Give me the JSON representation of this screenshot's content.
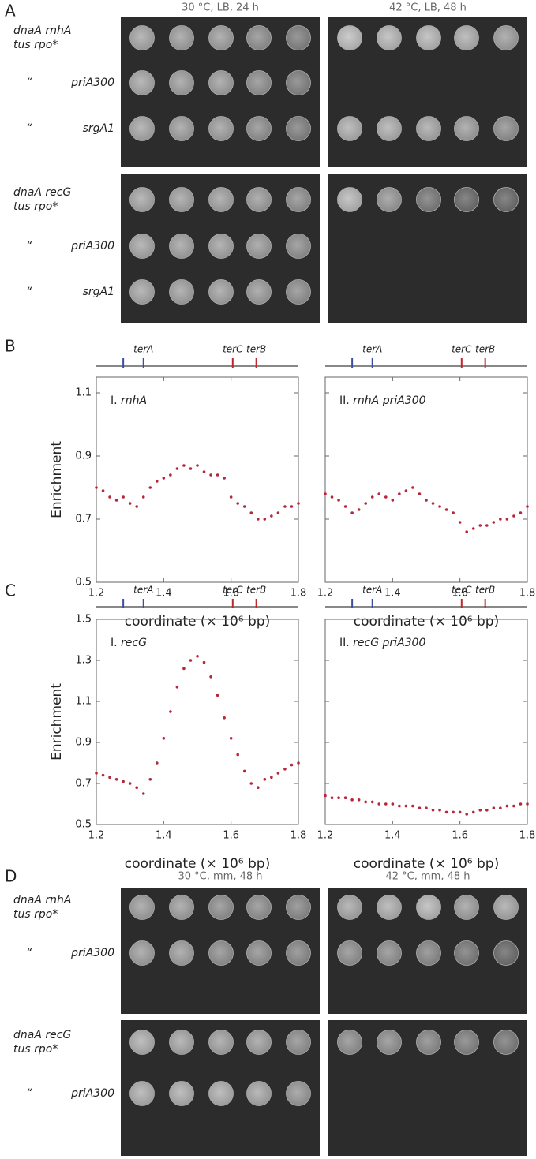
{
  "plates": [
    {
      "letter": "A",
      "conditions": [
        "30 °C, LB, 24 h",
        "42 °C, LB, 48 h"
      ],
      "groups": [
        {
          "rows": [
            {
              "strain": [
                "dnaA rnhA",
                "tus rpo*"
              ]
            },
            {
              "ditto": "“",
              "allele": "priA300"
            },
            {
              "ditto": "“",
              "allele": "srgA1"
            }
          ]
        },
        {
          "rows": [
            {
              "strain": [
                "dnaA recG",
                "tus rpo*"
              ]
            },
            {
              "ditto": "“",
              "allele": "priA300"
            },
            {
              "ditto": "“",
              "allele": "srgA1"
            }
          ]
        }
      ]
    },
    {
      "letter": "D",
      "conditions": [
        "30 °C, mm, 48 h",
        "42 °C, mm, 48 h"
      ],
      "groups": [
        {
          "rows": [
            {
              "strain": [
                "dnaA rnhA",
                "tus rpo*"
              ]
            },
            {
              "ditto": "“",
              "allele": "priA300"
            }
          ]
        },
        {
          "rows": [
            {
              "strain": [
                "dnaA recG",
                "tus rpo*"
              ]
            },
            {
              "ditto": "“",
              "allele": "priA300"
            }
          ]
        }
      ]
    }
  ],
  "chart_data": [
    {
      "type": "scatter",
      "panel_letter": "B",
      "numeral": "I.",
      "title": "rnhA",
      "ylabel": "Enrichment",
      "xlabel": "coordinate (× 10⁶ bp)",
      "color": "#b5273a",
      "xlim": [
        1.2,
        1.8
      ],
      "xticks": [
        1.2,
        1.4,
        1.6,
        1.8
      ],
      "ylim": [
        0.5,
        1.15
      ],
      "yticks": [
        0.5,
        0.7,
        0.9,
        1.1
      ],
      "sites": {
        "x": [
          1.28,
          1.34,
          1.605,
          1.675
        ],
        "labels": [
          null,
          "terA",
          "terC",
          "terB"
        ],
        "colors": [
          "#3a4fa0",
          "#3a4fa0",
          "#c0282d",
          "#c0282d"
        ]
      },
      "x": [
        1.2,
        1.22,
        1.24,
        1.26,
        1.28,
        1.3,
        1.32,
        1.34,
        1.36,
        1.38,
        1.4,
        1.42,
        1.44,
        1.46,
        1.48,
        1.5,
        1.52,
        1.54,
        1.56,
        1.58,
        1.6,
        1.62,
        1.64,
        1.66,
        1.68,
        1.7,
        1.72,
        1.74,
        1.76,
        1.78,
        1.8
      ],
      "values": [
        0.8,
        0.79,
        0.77,
        0.76,
        0.77,
        0.75,
        0.74,
        0.77,
        0.8,
        0.82,
        0.83,
        0.84,
        0.86,
        0.87,
        0.86,
        0.87,
        0.85,
        0.84,
        0.84,
        0.83,
        0.77,
        0.75,
        0.74,
        0.72,
        0.7,
        0.7,
        0.71,
        0.72,
        0.74,
        0.74,
        0.75
      ]
    },
    {
      "type": "scatter",
      "numeral": "II.",
      "title": "rnhA priA300",
      "xlabel": "coordinate (× 10⁶ bp)",
      "color": "#b5273a",
      "xlim": [
        1.2,
        1.8
      ],
      "xticks": [
        1.2,
        1.4,
        1.6,
        1.8
      ],
      "ylim": [
        0.5,
        1.15
      ],
      "yticks": [
        0.5,
        0.7,
        0.9,
        1.1
      ],
      "sites": {
        "x": [
          1.28,
          1.34,
          1.605,
          1.675
        ],
        "labels": [
          null,
          "terA",
          "terC",
          "terB"
        ],
        "colors": [
          "#3a4fa0",
          "#3a4fa0",
          "#c0282d",
          "#c0282d"
        ]
      },
      "x": [
        1.2,
        1.22,
        1.24,
        1.26,
        1.28,
        1.3,
        1.32,
        1.34,
        1.36,
        1.38,
        1.4,
        1.42,
        1.44,
        1.46,
        1.48,
        1.5,
        1.52,
        1.54,
        1.56,
        1.58,
        1.6,
        1.62,
        1.64,
        1.66,
        1.68,
        1.7,
        1.72,
        1.74,
        1.76,
        1.78,
        1.8
      ],
      "values": [
        0.78,
        0.77,
        0.76,
        0.74,
        0.72,
        0.73,
        0.75,
        0.77,
        0.78,
        0.77,
        0.76,
        0.78,
        0.79,
        0.8,
        0.78,
        0.76,
        0.75,
        0.74,
        0.73,
        0.72,
        0.69,
        0.66,
        0.67,
        0.68,
        0.68,
        0.69,
        0.7,
        0.7,
        0.71,
        0.72,
        0.74
      ]
    },
    {
      "type": "scatter",
      "panel_letter": "C",
      "numeral": "I.",
      "title": "recG",
      "ylabel": "Enrichment",
      "xlabel": "coordinate (× 10⁶ bp)",
      "color": "#b5273a",
      "xlim": [
        1.2,
        1.8
      ],
      "xticks": [
        1.2,
        1.4,
        1.6,
        1.8
      ],
      "ylim": [
        0.5,
        1.5
      ],
      "yticks": [
        0.5,
        0.7,
        0.9,
        1.1,
        1.3,
        1.5
      ],
      "sites": {
        "x": [
          1.28,
          1.34,
          1.605,
          1.675
        ],
        "labels": [
          null,
          "terA",
          "terC",
          "terB"
        ],
        "colors": [
          "#3a4fa0",
          "#3a4fa0",
          "#c0282d",
          "#c0282d"
        ]
      },
      "x": [
        1.2,
        1.22,
        1.24,
        1.26,
        1.28,
        1.3,
        1.32,
        1.34,
        1.36,
        1.38,
        1.4,
        1.42,
        1.44,
        1.46,
        1.48,
        1.5,
        1.52,
        1.54,
        1.56,
        1.58,
        1.6,
        1.62,
        1.64,
        1.66,
        1.68,
        1.7,
        1.72,
        1.74,
        1.76,
        1.78,
        1.8
      ],
      "values": [
        0.75,
        0.74,
        0.73,
        0.72,
        0.71,
        0.7,
        0.68,
        0.65,
        0.72,
        0.8,
        0.92,
        1.05,
        1.17,
        1.26,
        1.3,
        1.32,
        1.29,
        1.22,
        1.13,
        1.02,
        0.92,
        0.84,
        0.76,
        0.7,
        0.68,
        0.72,
        0.73,
        0.75,
        0.77,
        0.79,
        0.8
      ]
    },
    {
      "type": "scatter",
      "numeral": "II.",
      "title": "recG priA300",
      "xlabel": "coordinate (× 10⁶ bp)",
      "color": "#b5273a",
      "xlim": [
        1.2,
        1.8
      ],
      "xticks": [
        1.2,
        1.4,
        1.6,
        1.8
      ],
      "ylim": [
        0.5,
        1.5
      ],
      "yticks": [
        0.5,
        0.7,
        0.9,
        1.1,
        1.3,
        1.5
      ],
      "sites": {
        "x": [
          1.28,
          1.34,
          1.605,
          1.675
        ],
        "labels": [
          null,
          "terA",
          "terC",
          "terB"
        ],
        "colors": [
          "#3a4fa0",
          "#3a4fa0",
          "#c0282d",
          "#c0282d"
        ]
      },
      "x": [
        1.2,
        1.22,
        1.24,
        1.26,
        1.28,
        1.3,
        1.32,
        1.34,
        1.36,
        1.38,
        1.4,
        1.42,
        1.44,
        1.46,
        1.48,
        1.5,
        1.52,
        1.54,
        1.56,
        1.58,
        1.6,
        1.62,
        1.64,
        1.66,
        1.68,
        1.7,
        1.72,
        1.74,
        1.76,
        1.78,
        1.8
      ],
      "values": [
        0.64,
        0.63,
        0.63,
        0.63,
        0.62,
        0.62,
        0.61,
        0.61,
        0.6,
        0.6,
        0.6,
        0.59,
        0.59,
        0.59,
        0.58,
        0.58,
        0.57,
        0.57,
        0.56,
        0.56,
        0.56,
        0.55,
        0.56,
        0.57,
        0.57,
        0.58,
        0.58,
        0.59,
        0.59,
        0.6,
        0.6
      ]
    }
  ]
}
